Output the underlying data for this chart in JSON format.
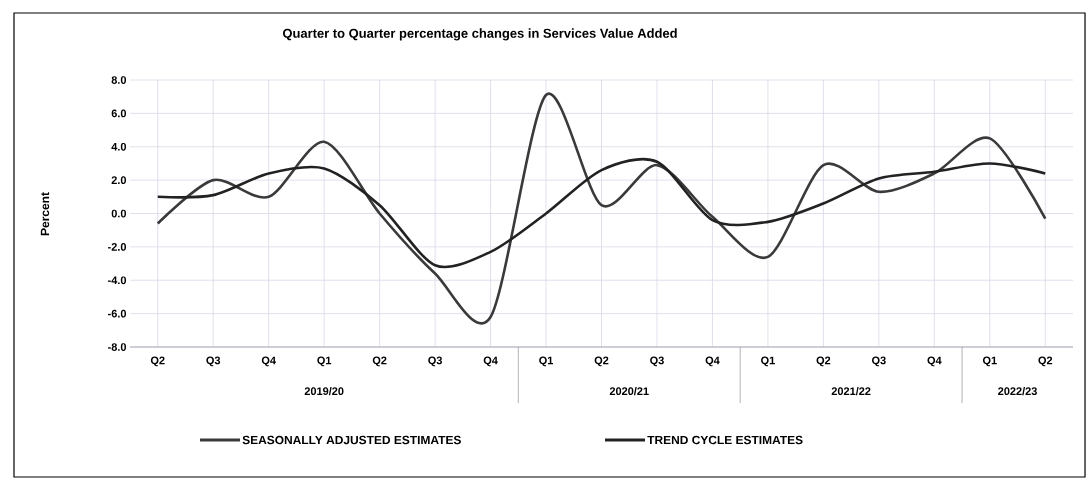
{
  "chart_data": {
    "type": "line",
    "title": "Quarter to Quarter percentage changes in Services Value Added",
    "ylabel": "Percent",
    "categories": [
      "Q2",
      "Q3",
      "Q4",
      "Q1",
      "Q2",
      "Q3",
      "Q4",
      "Q1",
      "Q2",
      "Q3",
      "Q4",
      "Q1",
      "Q2",
      "Q3",
      "Q4",
      "Q1",
      "Q2"
    ],
    "series": [
      {
        "name": "SEASONALLY ADJUSTED ESTIMATES",
        "color": "#3a3a3a",
        "values": [
          -0.6,
          2.0,
          1.0,
          4.3,
          0.0,
          -3.6,
          -6.2,
          7.1,
          0.5,
          2.9,
          -0.2,
          -2.6,
          2.9,
          1.3,
          2.4,
          4.5,
          -0.3
        ]
      },
      {
        "name": "TREND CYCLE ESTIMATES",
        "color": "#222222",
        "values": [
          1.0,
          1.1,
          2.4,
          2.7,
          0.5,
          -3.1,
          -2.3,
          0.0,
          2.6,
          3.1,
          -0.4,
          -0.5,
          0.6,
          2.1,
          2.5,
          3.0,
          2.4
        ]
      }
    ],
    "ylim": [
      -8,
      8
    ],
    "yticks": [
      {
        "value": -8,
        "label": "-8.0"
      },
      {
        "value": -6,
        "label": "-6.0"
      },
      {
        "value": -4,
        "label": "-4.0"
      },
      {
        "value": -2,
        "label": "-2.0"
      },
      {
        "value": 0,
        "label": "0.0"
      },
      {
        "value": 2,
        "label": "2.0"
      },
      {
        "value": 4,
        "label": "4.0"
      },
      {
        "value": 6,
        "label": "6.0"
      },
      {
        "value": 8,
        "label": "8.0"
      }
    ],
    "annotations": [
      "2019/20",
      "2020/21",
      "2021/22",
      "2022/23"
    ],
    "grid": true,
    "legend": "bottom"
  }
}
